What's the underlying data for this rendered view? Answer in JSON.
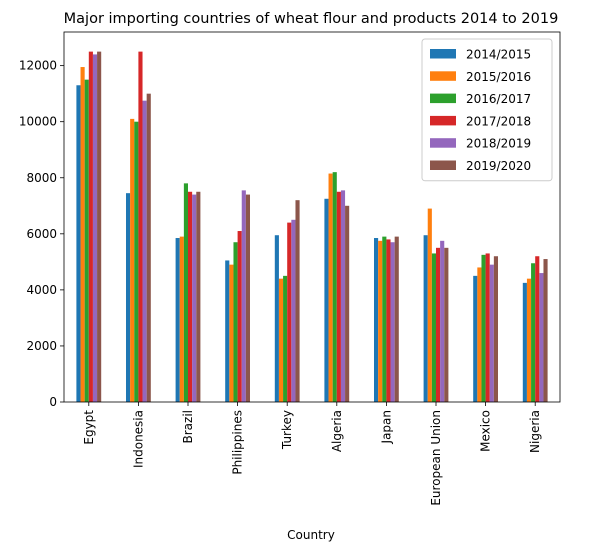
{
  "chart_data": {
    "type": "bar",
    "title": "Major importing countries of wheat flour and products 2014 to 2019",
    "xlabel": "Country",
    "ylabel": "",
    "ylim": [
      0,
      13200
    ],
    "yticks": [
      0,
      2000,
      4000,
      6000,
      8000,
      10000,
      12000
    ],
    "grid": false,
    "legend_position": "top-right",
    "categories": [
      "Egypt",
      "Indonesia",
      "Brazil",
      "Philippines",
      "Turkey",
      "Algeria",
      "Japan",
      "European Union",
      "Mexico",
      "Nigeria"
    ],
    "series": [
      {
        "name": "2014/2015",
        "color": "#1f77b4",
        "values": [
          11300,
          7450,
          5850,
          5050,
          5950,
          7250,
          5850,
          5950,
          4500,
          4250
        ]
      },
      {
        "name": "2015/2016",
        "color": "#ff7f0e",
        "values": [
          11950,
          10100,
          5900,
          4900,
          4400,
          8150,
          5750,
          6900,
          4800,
          4400
        ]
      },
      {
        "name": "2016/2017",
        "color": "#2ca02c",
        "values": [
          11500,
          10000,
          7800,
          5700,
          4500,
          8200,
          5900,
          5300,
          5250,
          4950
        ]
      },
      {
        "name": "2017/2018",
        "color": "#d62728",
        "values": [
          12500,
          12500,
          7500,
          6100,
          6400,
          7500,
          5800,
          5500,
          5300,
          5200
        ]
      },
      {
        "name": "2018/2019",
        "color": "#9467bd",
        "values": [
          12400,
          10750,
          7400,
          7550,
          6500,
          7550,
          5700,
          5750,
          4900,
          4600
        ]
      },
      {
        "name": "2019/2020",
        "color": "#8c564b",
        "values": [
          12500,
          11000,
          7500,
          7400,
          7200,
          7000,
          5900,
          5500,
          5200,
          5100
        ]
      }
    ]
  }
}
